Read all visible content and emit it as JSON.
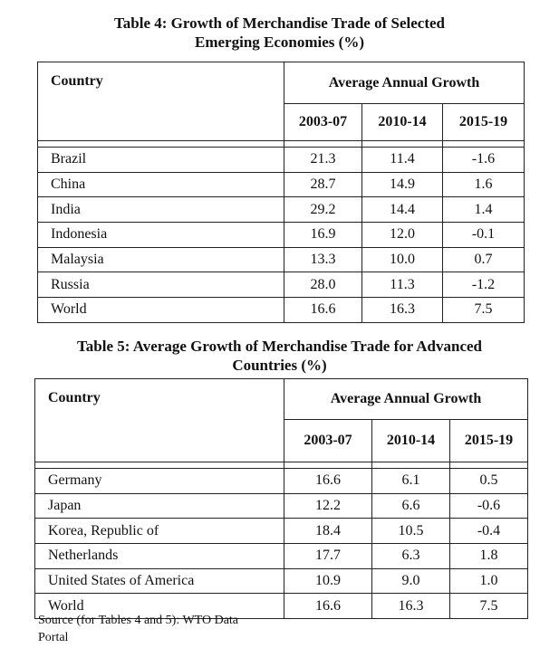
{
  "table4": {
    "caption_line1": "Table 4: Growth of Merchandise Trade of Selected",
    "caption_line2": "Emerging Economies (%)",
    "country_header": "Country",
    "group_header": "Average Annual Growth",
    "periods": [
      "2003-07",
      "2010-14",
      "2015-19"
    ],
    "rows": [
      {
        "country": "Brazil",
        "values": [
          "21.3",
          "11.4",
          "-1.6"
        ]
      },
      {
        "country": "China",
        "values": [
          "28.7",
          "14.9",
          "1.6"
        ]
      },
      {
        "country": "India",
        "values": [
          "29.2",
          "14.4",
          "1.4"
        ]
      },
      {
        "country": "Indonesia",
        "values": [
          "16.9",
          "12.0",
          "-0.1"
        ]
      },
      {
        "country": "Malaysia",
        "values": [
          "13.3",
          "10.0",
          "0.7"
        ]
      },
      {
        "country": "Russia",
        "values": [
          "28.0",
          "11.3",
          "-1.2"
        ]
      },
      {
        "country": "World",
        "values": [
          "16.6",
          "16.3",
          "7.5"
        ]
      }
    ]
  },
  "table5": {
    "caption_line1": "Table 5: Average Growth of Merchandise Trade for Advanced",
    "caption_line2": "Countries (%)",
    "country_header": "Country",
    "group_header": "Average Annual Growth",
    "periods": [
      "2003-07",
      "2010-14",
      "2015-19"
    ],
    "rows": [
      {
        "country": "Germany",
        "values": [
          "16.6",
          "6.1",
          "0.5"
        ]
      },
      {
        "country": "Japan",
        "values": [
          "12.2",
          "6.6",
          "-0.6"
        ]
      },
      {
        "country": "Korea, Republic of",
        "values": [
          "18.4",
          "10.5",
          "-0.4"
        ]
      },
      {
        "country": "Netherlands",
        "values": [
          "17.7",
          "6.3",
          "1.8"
        ]
      },
      {
        "country": "United States of America",
        "values": [
          "10.9",
          "9.0",
          "1.0"
        ]
      },
      {
        "country": "World",
        "values": [
          "16.6",
          "16.3",
          "7.5"
        ]
      }
    ]
  },
  "source": {
    "line1": "Source (for Tables 4 and 5): WTO Data",
    "line2": "Portal"
  }
}
